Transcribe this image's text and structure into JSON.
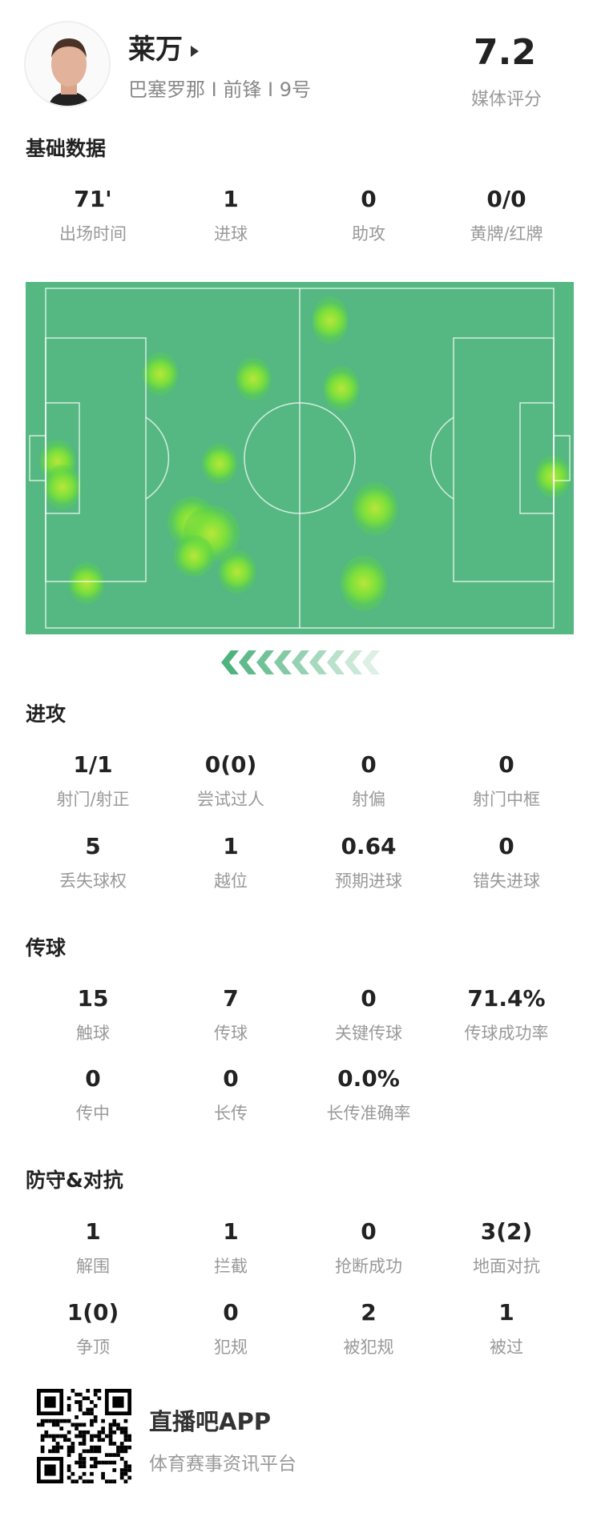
{
  "player": {
    "name": "莱万",
    "team": "巴塞罗那",
    "position": "前锋",
    "number": "9号",
    "separator": "I",
    "rating": "7.2",
    "rating_label": "媒体评分"
  },
  "basic": {
    "title": "基础数据",
    "stats": [
      {
        "value": "71'",
        "label": "出场时间"
      },
      {
        "value": "1",
        "label": "进球"
      },
      {
        "value": "0",
        "label": "助攻"
      },
      {
        "value": "0/0",
        "label": "黄牌/红牌"
      }
    ]
  },
  "heatmap": {
    "pitch_color": "#55b882",
    "hot_color": "#b8e63a",
    "direction": "left"
  },
  "attack": {
    "title": "进攻",
    "stats": [
      {
        "value": "1/1",
        "label": "射门/射正"
      },
      {
        "value": "0(0)",
        "label": "尝试过人"
      },
      {
        "value": "0",
        "label": "射偏"
      },
      {
        "value": "0",
        "label": "射门中框"
      },
      {
        "value": "5",
        "label": "丢失球权"
      },
      {
        "value": "1",
        "label": "越位"
      },
      {
        "value": "0.64",
        "label": "预期进球"
      },
      {
        "value": "0",
        "label": "错失进球"
      }
    ]
  },
  "passing": {
    "title": "传球",
    "stats": [
      {
        "value": "15",
        "label": "触球"
      },
      {
        "value": "7",
        "label": "传球"
      },
      {
        "value": "0",
        "label": "关键传球"
      },
      {
        "value": "71.4%",
        "label": "传球成功率"
      },
      {
        "value": "0",
        "label": "传中"
      },
      {
        "value": "0",
        "label": "长传"
      },
      {
        "value": "0.0%",
        "label": "长传准确率"
      }
    ]
  },
  "defense": {
    "title": "防守&对抗",
    "stats": [
      {
        "value": "1",
        "label": "解围"
      },
      {
        "value": "1",
        "label": "拦截"
      },
      {
        "value": "0",
        "label": "抢断成功"
      },
      {
        "value": "3(2)",
        "label": "地面对抗"
      },
      {
        "value": "1(0)",
        "label": "争顶"
      },
      {
        "value": "0",
        "label": "犯规"
      },
      {
        "value": "2",
        "label": "被犯规"
      },
      {
        "value": "1",
        "label": "被过"
      }
    ]
  },
  "footer": {
    "app_name": "直播吧APP",
    "slogan": "体育赛事资讯平台"
  }
}
